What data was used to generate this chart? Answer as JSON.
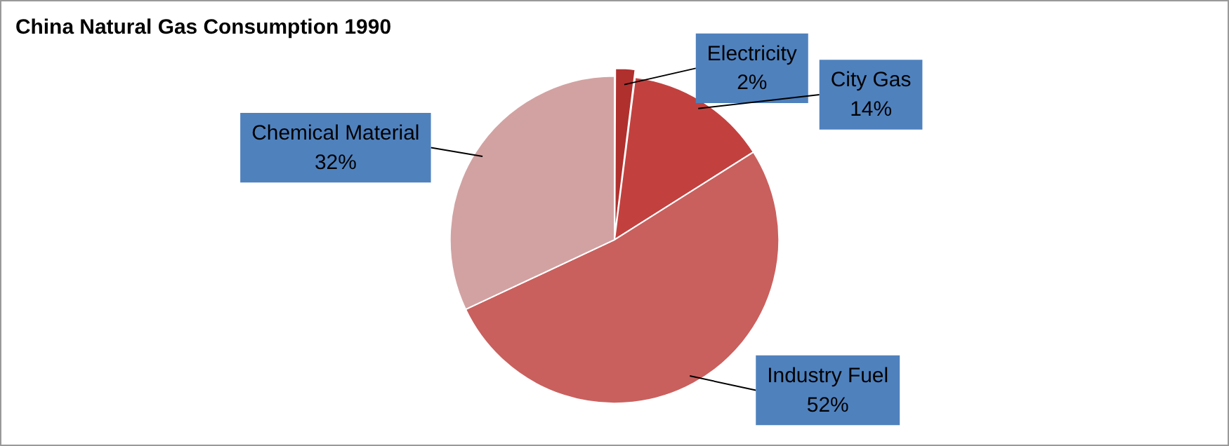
{
  "chart_data": {
    "type": "pie",
    "title": "China Natural Gas Consumption 1990",
    "categories": [
      "Electricity",
      "City Gas",
      "Industry Fuel",
      "Chemical Material"
    ],
    "values": [
      2,
      14,
      52,
      32
    ],
    "value_labels": [
      "2%",
      "14%",
      "52%",
      "32%"
    ],
    "colors": [
      "#b0302e",
      "#c2413f",
      "#c9605e",
      "#d2a2a2"
    ],
    "legend": false
  }
}
